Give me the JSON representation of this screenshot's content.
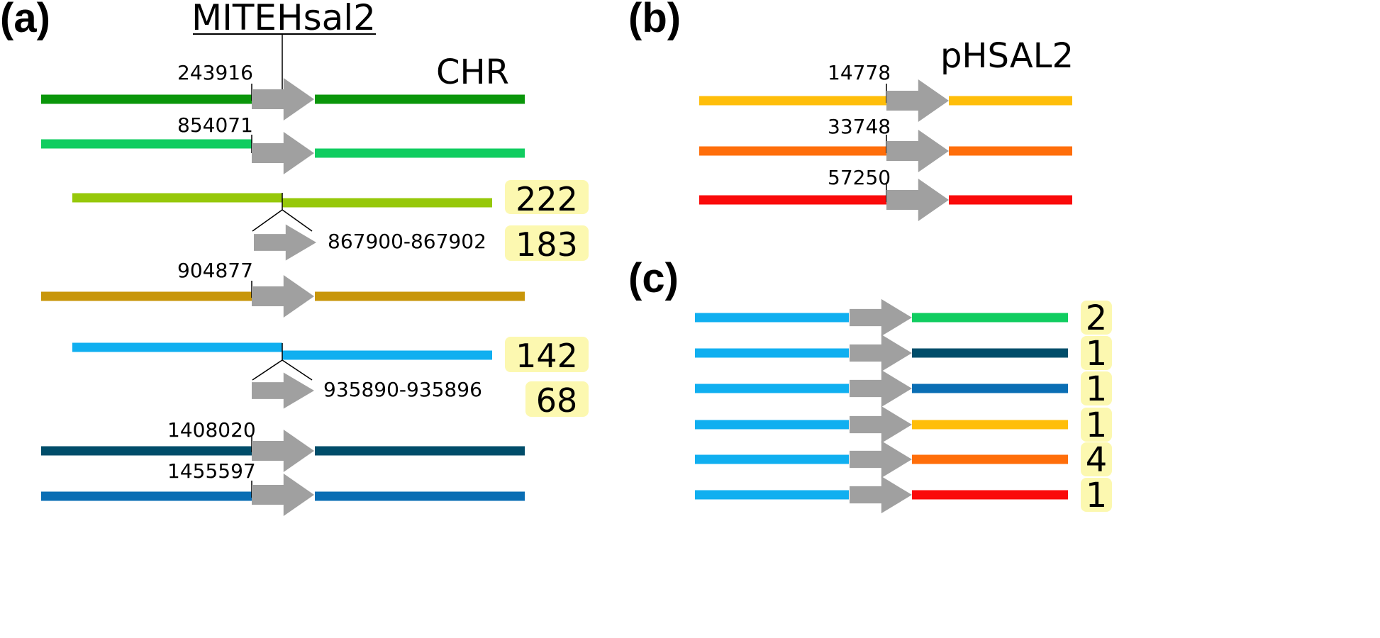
{
  "panels": {
    "a": "(a)",
    "b": "(b)",
    "c": "(c)"
  },
  "panel_a": {
    "element_name": "MITEHsal2",
    "replicon": "CHR",
    "positions": {
      "p1": "243916",
      "p2": "854071",
      "p3": "867900-867902",
      "p4": "904877",
      "p5": "935890-935896",
      "p6": "1408020",
      "p7": "1455597"
    },
    "lengths": {
      "l1": "222",
      "l2": "183",
      "l3": "142",
      "l4": "68"
    },
    "colors": {
      "row1": "#0a960a",
      "row2": "#10cd60",
      "row3": "#96c80a",
      "row4": "#c8960a",
      "row5": "#10aff0",
      "row6": "#004d6a",
      "row7": "#0a6eb4"
    }
  },
  "panel_b": {
    "replicon": "pHSAL2",
    "positions": {
      "p1": "14778",
      "p2": "33748",
      "p3": "57250"
    },
    "colors": {
      "row1": "#ffbe0a",
      "row2": "#ff6e0a",
      "row3": "#fa0a0a"
    }
  },
  "panel_c": {
    "counts": [
      "2",
      "1",
      "1",
      "1",
      "4",
      "1"
    ],
    "left_color": "#10aff0",
    "right_colors": [
      "#10cd60",
      "#004d6a",
      "#0a6eb4",
      "#ffbe0a",
      "#ff6e0a",
      "#fa0a0a"
    ]
  },
  "styles": {
    "mite_arrow": "#a0a0a0",
    "badge_fill": "#fcf8b0"
  }
}
